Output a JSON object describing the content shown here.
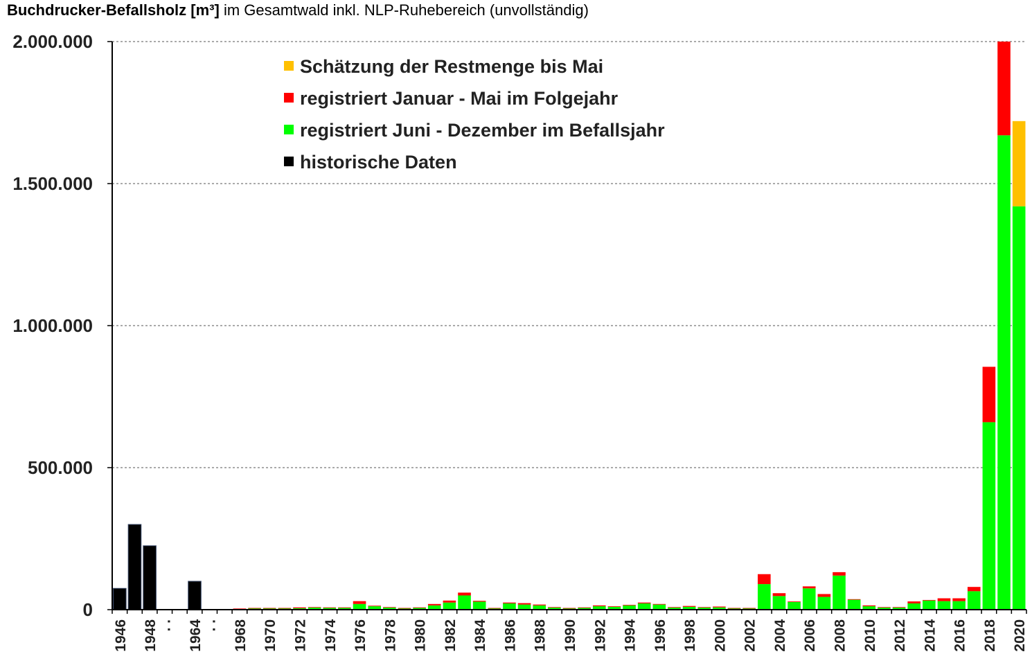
{
  "title": {
    "bold": "Buchdrucker-Befallsholz [m³]",
    "rest": " im Gesamtwald inkl. NLP-Ruhebereich (unvollständig)"
  },
  "colors": {
    "historisch": "#000000",
    "juni_dez": "#00ff00",
    "jan_mai": "#ff0000",
    "schaetzung": "#ffc000",
    "grid": "#555555",
    "axis": "#000000"
  },
  "chart_data": {
    "type": "bar",
    "stacked": true,
    "ylim": [
      0,
      2000000
    ],
    "yticks": [
      0,
      500000,
      1000000,
      1500000,
      2000000
    ],
    "ytick_labels": [
      "0",
      "500.000",
      "1.000.000",
      "1.500.000",
      "2.000.000"
    ],
    "grid": "horizontal dashed",
    "legend_position": "top-center",
    "legend_order": [
      "schaetzung",
      "jan_mai",
      "juni_dez",
      "historisch"
    ],
    "categories": [
      "1946",
      "1947",
      "1948",
      "",
      "",
      "1964",
      "",
      "",
      "1968",
      "1969",
      "1970",
      "1971",
      "1972",
      "1973",
      "1974",
      "1975",
      "1976",
      "1977",
      "1978",
      "1979",
      "1980",
      "1981",
      "1982",
      "1983",
      "1984",
      "1985",
      "1986",
      "1987",
      "1988",
      "1989",
      "1990",
      "1991",
      "1992",
      "1993",
      "1994",
      "1995",
      "1996",
      "1997",
      "1998",
      "1999",
      "2000",
      "2001",
      "2002",
      "2003",
      "2004",
      "2005",
      "2006",
      "2007",
      "2008",
      "2009",
      "2010",
      "2011",
      "2012",
      "2013",
      "2014",
      "2015",
      "2016",
      "2017",
      "2018",
      "2019",
      "2020"
    ],
    "x_tick_labels": [
      "1946",
      "",
      "1948",
      ". .",
      "",
      "1964",
      ". .",
      "",
      "1968",
      "",
      "1970",
      "",
      "1972",
      "",
      "1974",
      "",
      "1976",
      "",
      "1978",
      "",
      "1980",
      "",
      "1982",
      "",
      "1984",
      "",
      "1986",
      "",
      "1988",
      "",
      "1990",
      "",
      "1992",
      "",
      "1994",
      "",
      "1996",
      "",
      "1998",
      "",
      "2000",
      "",
      "2002",
      "",
      "2004",
      "",
      "2006",
      "",
      "2008",
      "",
      "2010",
      "",
      "2012",
      "",
      "2014",
      "",
      "2016",
      "",
      "2018",
      "",
      "2020"
    ],
    "series": [
      {
        "key": "historisch",
        "name": "historische Daten",
        "values": [
          75000,
          300000,
          225000,
          0,
          0,
          100000,
          0,
          0,
          0,
          0,
          0,
          0,
          0,
          0,
          0,
          0,
          0,
          0,
          0,
          0,
          0,
          0,
          0,
          0,
          0,
          0,
          0,
          0,
          0,
          0,
          0,
          0,
          0,
          0,
          0,
          0,
          0,
          0,
          0,
          0,
          0,
          0,
          0,
          0,
          0,
          0,
          0,
          0,
          0,
          0,
          0,
          0,
          0,
          0,
          0,
          0,
          0,
          0,
          0,
          0,
          0
        ]
      },
      {
        "key": "juni_dez",
        "name": "registriert Juni - Dezember im Befallsjahr",
        "values": [
          0,
          0,
          0,
          0,
          0,
          0,
          0,
          0,
          3000,
          5000,
          5000,
          5000,
          5000,
          8000,
          7000,
          7000,
          20000,
          12000,
          8000,
          5000,
          7000,
          15000,
          25000,
          50000,
          28000,
          5000,
          22000,
          18000,
          15000,
          8000,
          5000,
          7000,
          12000,
          10000,
          15000,
          22000,
          18000,
          8000,
          10000,
          8000,
          8000,
          5000,
          5000,
          90000,
          48000,
          27000,
          75000,
          45000,
          120000,
          35000,
          12000,
          8000,
          8000,
          22000,
          32000,
          30000,
          30000,
          65000,
          660000,
          1670000,
          1420000
        ]
      },
      {
        "key": "jan_mai",
        "name": "registriert Januar - Mai im Folgejahr",
        "values": [
          0,
          0,
          0,
          0,
          0,
          0,
          0,
          0,
          1000,
          1000,
          1000,
          1000,
          3000,
          1000,
          1000,
          1000,
          10000,
          2000,
          1000,
          1000,
          1000,
          5000,
          7000,
          10000,
          3000,
          1000,
          3000,
          5000,
          3000,
          1000,
          1000,
          1000,
          3000,
          2000,
          2000,
          3000,
          2000,
          1000,
          3000,
          1000,
          3000,
          1000,
          1000,
          35000,
          10000,
          2000,
          7000,
          10000,
          12000,
          2000,
          3000,
          1000,
          1000,
          7000,
          2000,
          10000,
          10000,
          15000,
          195000,
          330000,
          0
        ]
      },
      {
        "key": "schaetzung",
        "name": "Schätzung der Restmenge bis Mai",
        "values": [
          0,
          0,
          0,
          0,
          0,
          0,
          0,
          0,
          0,
          0,
          0,
          0,
          0,
          0,
          0,
          0,
          0,
          0,
          0,
          0,
          0,
          0,
          0,
          0,
          0,
          0,
          0,
          0,
          0,
          0,
          0,
          0,
          0,
          0,
          0,
          0,
          0,
          0,
          0,
          0,
          0,
          0,
          0,
          0,
          0,
          0,
          0,
          0,
          0,
          0,
          0,
          0,
          0,
          0,
          0,
          0,
          0,
          0,
          0,
          0,
          300000
        ]
      }
    ]
  }
}
